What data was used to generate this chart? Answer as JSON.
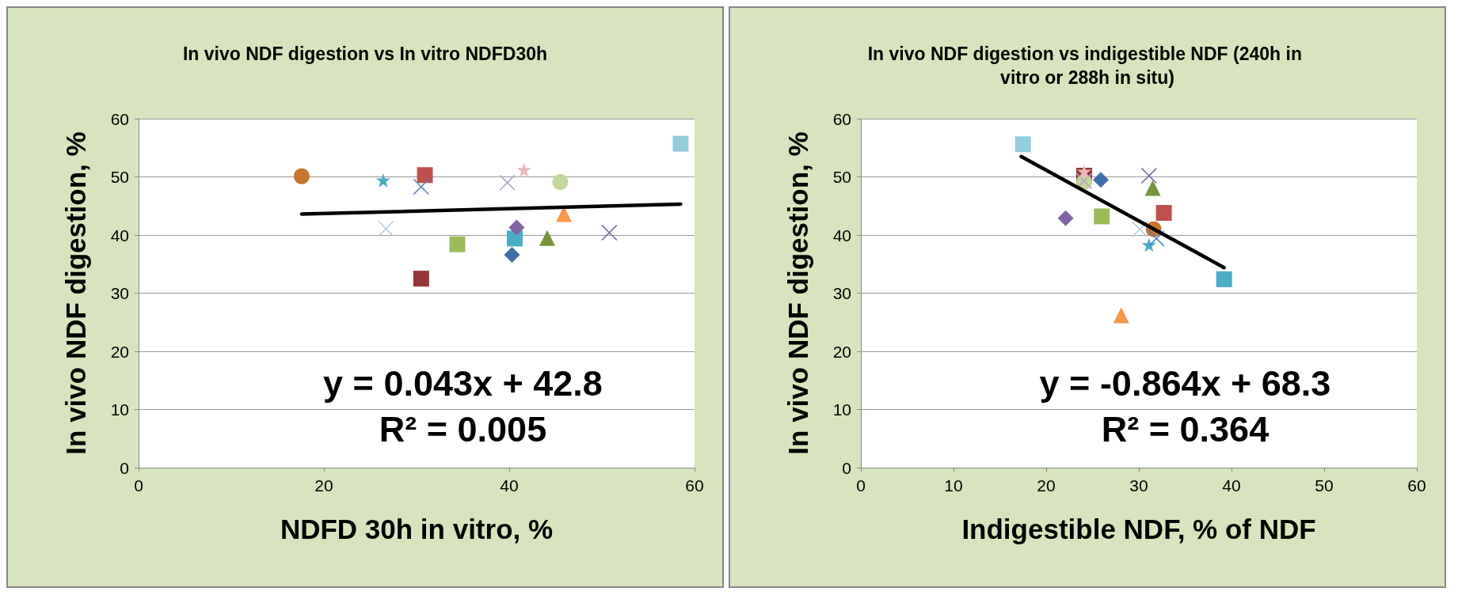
{
  "chart_data": [
    {
      "type": "scatter",
      "title": "In vivo NDF digestion vs In vitro NDFD30h",
      "xlabel": "NDFD 30h in vitro, %",
      "ylabel": "In vivo NDF digestion, %",
      "xlim": [
        0,
        60
      ],
      "xticks": [
        0,
        20,
        40,
        60
      ],
      "ylim": [
        0,
        60
      ],
      "yticks": [
        0,
        10,
        20,
        30,
        40,
        50,
        60
      ],
      "grid": "y",
      "annotations": [
        "y = 0.043x + 42.8",
        "R² = 0.005"
      ],
      "series": [
        {
          "color": "#c8742c",
          "marker": "circle",
          "x": [
            17.6
          ],
          "values": [
            50.1
          ]
        },
        {
          "color": "#4bacc6",
          "marker": "star",
          "x": [
            26.4
          ],
          "values": [
            49.4
          ]
        },
        {
          "color": "#c0504d",
          "marker": "square",
          "x": [
            30.9
          ],
          "values": [
            50.3
          ]
        },
        {
          "color": "#4f81bd",
          "marker": "cross",
          "x": [
            30.5
          ],
          "values": [
            48.3
          ]
        },
        {
          "color": "#b3a2c7",
          "marker": "cross",
          "x": [
            39.8
          ],
          "values": [
            49.0
          ]
        },
        {
          "color": "#e6b9b8",
          "marker": "star",
          "x": [
            41.6
          ],
          "values": [
            51.2
          ]
        },
        {
          "color": "#c3d69b",
          "marker": "circle",
          "x": [
            45.5
          ],
          "values": [
            49.1
          ]
        },
        {
          "color": "#93cddd",
          "marker": "square",
          "x": [
            58.5
          ],
          "values": [
            55.7
          ]
        },
        {
          "color": "#f79646",
          "marker": "triangle",
          "x": [
            45.9
          ],
          "values": [
            43.6
          ]
        },
        {
          "color": "#b9cde5",
          "marker": "cross",
          "x": [
            26.7
          ],
          "values": [
            41.1
          ]
        },
        {
          "color": "#8064a2",
          "marker": "diamond",
          "x": [
            40.8
          ],
          "values": [
            41.3
          ]
        },
        {
          "color": "#7f6a9a",
          "marker": "cross",
          "x": [
            50.8
          ],
          "values": [
            40.4
          ]
        },
        {
          "color": "#77933c",
          "marker": "triangle",
          "x": [
            44.1
          ],
          "values": [
            39.5
          ]
        },
        {
          "color": "#4bacc6",
          "marker": "square",
          "x": [
            40.6
          ],
          "values": [
            39.4
          ]
        },
        {
          "color": "#9bbb59",
          "marker": "square",
          "x": [
            34.4
          ],
          "values": [
            38.4
          ]
        },
        {
          "color": "#3f6fa8",
          "marker": "diamond",
          "x": [
            40.3
          ],
          "values": [
            36.6
          ]
        },
        {
          "color": "#953735",
          "marker": "square",
          "x": [
            30.5
          ],
          "values": [
            32.5
          ]
        },
        {
          "type": "line",
          "color": "#000000",
          "marker": "none",
          "x": [
            17.6,
            58.5
          ],
          "values": [
            43.6,
            45.3
          ]
        }
      ]
    },
    {
      "type": "scatter",
      "title": "In vivo NDF digestion vs indigestible NDF (240h in vitro or 288h in situ)",
      "xlabel": "Indigestible NDF, % of NDF",
      "ylabel": "In vivo NDF digestion, %",
      "xlim": [
        0,
        60
      ],
      "xticks": [
        0,
        10,
        20,
        30,
        40,
        50,
        60
      ],
      "ylim": [
        0,
        60
      ],
      "yticks": [
        0,
        10,
        20,
        30,
        40,
        50,
        60
      ],
      "grid": "y",
      "annotations": [
        "y = -0.864x + 68.3",
        "R² = 0.364"
      ],
      "series": [
        {
          "color": "#c8742c",
          "marker": "circle",
          "x": [
            31.6
          ],
          "values": [
            41.0
          ]
        },
        {
          "color": "#4bacc6",
          "marker": "star",
          "x": [
            31.1
          ],
          "values": [
            38.3
          ]
        },
        {
          "color": "#c0504d",
          "marker": "square",
          "x": [
            32.7
          ],
          "values": [
            43.8
          ]
        },
        {
          "color": "#4f81bd",
          "marker": "cross",
          "x": [
            31.9
          ],
          "values": [
            39.4
          ]
        },
        {
          "color": "#b3a2c7",
          "marker": "cross",
          "x": [
            24.1
          ],
          "values": [
            49.3
          ]
        },
        {
          "color": "#e6b9b8",
          "marker": "star",
          "x": [
            24.1
          ],
          "values": [
            50.9
          ]
        },
        {
          "color": "#c3d69b",
          "marker": "circle",
          "x": [
            24.1
          ],
          "values": [
            49.1
          ]
        },
        {
          "color": "#93cddd",
          "marker": "square",
          "x": [
            17.5
          ],
          "values": [
            55.6
          ]
        },
        {
          "color": "#f79646",
          "marker": "triangle",
          "x": [
            28.1
          ],
          "values": [
            26.2
          ]
        },
        {
          "color": "#b9cde5",
          "marker": "cross",
          "x": [
            30.1
          ],
          "values": [
            41.0
          ]
        },
        {
          "color": "#8064a2",
          "marker": "diamond",
          "x": [
            22.1
          ],
          "values": [
            42.9
          ]
        },
        {
          "color": "#7f6a9a",
          "marker": "cross",
          "x": [
            31.1
          ],
          "values": [
            50.2
          ]
        },
        {
          "color": "#77933c",
          "marker": "triangle",
          "x": [
            31.5
          ],
          "values": [
            48.1
          ]
        },
        {
          "color": "#4bacc6",
          "marker": "square",
          "x": [
            39.2
          ],
          "values": [
            32.4
          ]
        },
        {
          "color": "#9bbb59",
          "marker": "square",
          "x": [
            26.0
          ],
          "values": [
            43.2
          ]
        },
        {
          "color": "#3f6fa8",
          "marker": "diamond",
          "x": [
            25.9
          ],
          "values": [
            49.5
          ]
        },
        {
          "color": "#953735",
          "marker": "square",
          "x": [
            24.1
          ],
          "values": [
            50.2
          ]
        },
        {
          "type": "line",
          "color": "#000000",
          "marker": "none",
          "x": [
            17.3,
            39.2
          ],
          "values": [
            53.5,
            34.4
          ]
        }
      ]
    }
  ]
}
